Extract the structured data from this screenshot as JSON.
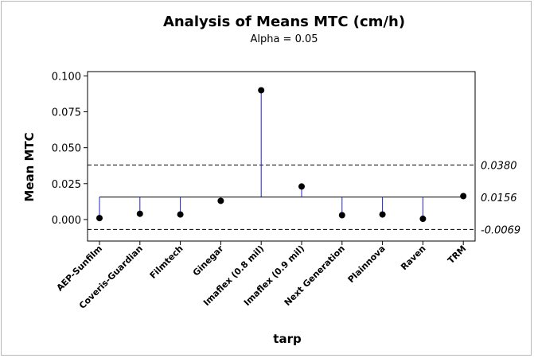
{
  "chart_data": {
    "type": "scatter",
    "title": "Analysis of Means MTC (cm/h)",
    "subtitle": "Alpha = 0.05",
    "xlabel": "tarp",
    "ylabel": "Mean MTC",
    "categories": [
      "AEP-Sunfilm",
      "Coveris-Guardian",
      "Filmtech",
      "Ginegar",
      "Imaflex (0.8 mil)",
      "Imaflex (0.9 mil)",
      "Next Generation",
      "Plainnova",
      "Raven",
      "TRM"
    ],
    "values": [
      0.001,
      0.004,
      0.0035,
      0.013,
      0.09,
      0.023,
      0.003,
      0.0035,
      0.0005,
      0.0163
    ],
    "center_line": 0.0156,
    "upper_limit": 0.038,
    "lower_limit": -0.0069,
    "limit_labels": [
      "0.0380",
      "0.0156",
      "-0.0069"
    ],
    "ylim": [
      -0.015,
      0.103
    ],
    "yticks": [
      0.0,
      0.025,
      0.05,
      0.075,
      0.1
    ],
    "ytick_labels": [
      "0.000",
      "0.025",
      "0.050",
      "0.075",
      "0.100"
    ],
    "colors": {
      "stem": "#2222cc",
      "center": "#000000",
      "limits": "#000000",
      "point": "#000000"
    }
  }
}
